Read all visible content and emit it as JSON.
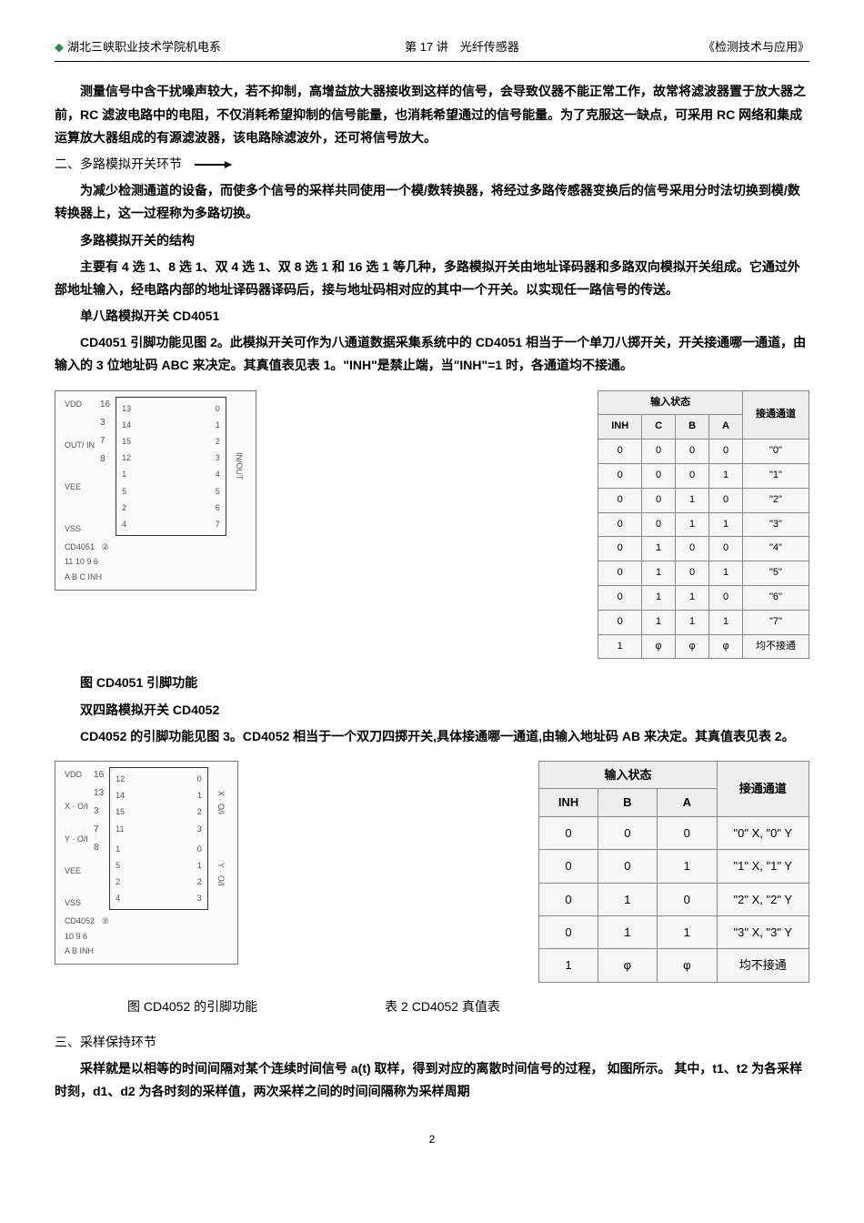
{
  "header": {
    "left": "湖北三峡职业技术学院机电系",
    "center": "第 17 讲　光纤传感器",
    "right": "《检测技术与应用》"
  },
  "paragraphs": {
    "p1": "测量信号中含干扰噪声较大，若不抑制，高增益放大器接收到这样的信号，会导致仪器不能正常工作，故常将滤波器置于放大器之前，RC 滤波电路中的电阻，不仅消耗希望抑制的信号能量，也消耗希望通过的信号能量。为了克服这一缺点，可采用 RC 网络和集成运算放大器组成的有源滤波器，该电路除滤波外，还可将信号放大。",
    "h2": "二、多路模拟开关环节",
    "p2": "为减少检测通道的设备，而使多个信号的采样共同使用一个模/数转换器，将经过多路传感器变换后的信号采用分时法切换到模/数转换器上，这一过程称为多路切换。",
    "p3": "多路模拟开关的结构",
    "p4": "主要有 4 选 1、8 选 1、双 4 选 1、双 8 选 1 和 16 选 1 等几种，多路模拟开关由地址译码器和多路双向模拟开关组成。它通过外部地址输入，经电路内部的地址译码器译码后，接与地址码相对应的其中一个开关。以实现任一路信号的传送。",
    "p5title": "单八路模拟开关 CD4051",
    "p5": "CD4051 引脚功能见图 2。此模拟开关可作为八通道数据采集系统中的 CD4051 相当于一个单刀八掷开关，开关接通哪一通道，由输入的 3 位地址码 ABC 来决定。其真值表见表 1。\"INH\"是禁止端，当\"INH\"=1 时，各通道均不接通。",
    "fig1caption": "图 CD4051 引脚功能",
    "p6title": "双四路模拟开关 CD4052",
    "p6": "CD4052 的引脚功能见图 3。CD4052 相当于一个双刀四掷开关,具体接通哪一通道,由输入地址码 AB 来决定。其真值表见表 2。",
    "fig2caption1": "图 CD4052 的引脚功能",
    "fig2caption2": "表 2 CD4052 真值表",
    "h3": "三、采样保持环节",
    "p7": "采样就是以相等的时间间隔对某个连续时间信号 a(t) 取样，得到对应的离散时间信号的过程， 如图所示。 其中，t1、t2 为各采样时刻，d1、d2 为各时刻的采样值，两次采样之间的时间间隔称为采样周期"
  },
  "diagrams": {
    "cd4051": {
      "left_labels": [
        "VDD",
        "OUT/ IN",
        "VEE",
        "VSS"
      ],
      "left_pins": [
        "16",
        "3",
        "7",
        "8"
      ],
      "right_pins": [
        "13",
        "14",
        "15",
        "12",
        "1",
        "5",
        "2",
        "4"
      ],
      "right_nums": [
        "0",
        "1",
        "2",
        "3",
        "4",
        "5",
        "6",
        "7"
      ],
      "chip_label": "CD4051",
      "bottom_pins": "11 10  9  6",
      "bottom_labels": "A  B  C  INH",
      "side_label": "IN/OUT",
      "mark": "②"
    },
    "cd4052": {
      "left_labels": [
        "VDD",
        "X · O/I",
        "Y · O/I",
        "VEE",
        "VSS"
      ],
      "left_pins": [
        "16",
        "13",
        "3",
        "7",
        "8"
      ],
      "right_pins_x": [
        "12",
        "14",
        "15",
        "11"
      ],
      "right_nums_x": [
        "0",
        "1",
        "2",
        "3"
      ],
      "right_pins_y": [
        "1",
        "5",
        "2",
        "4"
      ],
      "right_nums_y": [
        "0",
        "1",
        "2",
        "3"
      ],
      "chip_label": "CD4052",
      "bottom_pins": "10  9  6",
      "bottom_labels": "A  B  INH",
      "side_label_x": "X · O/I",
      "side_label_y": "Y · O/I",
      "mark": "③"
    }
  },
  "truth1": {
    "group_header": "输入状态",
    "out_header": "接通通道",
    "cols": [
      "INH",
      "C",
      "B",
      "A"
    ],
    "rows": [
      [
        "0",
        "0",
        "0",
        "0",
        "\"0\""
      ],
      [
        "0",
        "0",
        "0",
        "1",
        "\"1\""
      ],
      [
        "0",
        "0",
        "1",
        "0",
        "\"2\""
      ],
      [
        "0",
        "0",
        "1",
        "1",
        "\"3\""
      ],
      [
        "0",
        "1",
        "0",
        "0",
        "\"4\""
      ],
      [
        "0",
        "1",
        "0",
        "1",
        "\"5\""
      ],
      [
        "0",
        "1",
        "1",
        "0",
        "\"6\""
      ],
      [
        "0",
        "1",
        "1",
        "1",
        "\"7\""
      ],
      [
        "1",
        "φ",
        "φ",
        "φ",
        "均不接通"
      ]
    ]
  },
  "truth2": {
    "group_header": "输入状态",
    "out_header": "接通通道",
    "cols": [
      "INH",
      "B",
      "A"
    ],
    "rows": [
      [
        "0",
        "0",
        "0",
        "\"0\" X,  \"0\" Y"
      ],
      [
        "0",
        "0",
        "1",
        "\"1\" X,  \"1\" Y"
      ],
      [
        "0",
        "1",
        "0",
        "\"2\" X,  \"2\" Y"
      ],
      [
        "0",
        "1",
        "1",
        "\"3\" X,  \"3\" Y"
      ],
      [
        "1",
        "φ",
        "φ",
        "均不接通"
      ]
    ]
  },
  "pagenum": "2"
}
